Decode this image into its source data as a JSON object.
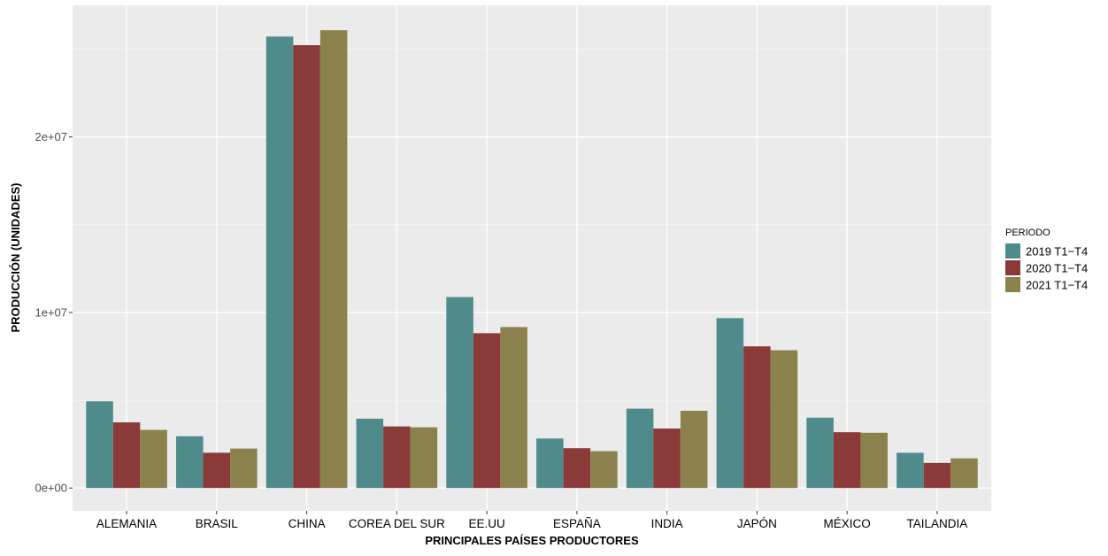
{
  "chart_data": {
    "type": "bar",
    "title": "",
    "xlabel": "PRINCIPALES PAÍSES PRODUCTORES",
    "ylabel": "PRODUCCIÓN (UNIDADES)",
    "categories": [
      "ALEMANIA",
      "BRASIL",
      "CHINA",
      "COREA DEL SUR",
      "EE.UU",
      "ESPAÑA",
      "INDIA",
      "JAPÓN",
      "MÉXICO",
      "TAILANDIA"
    ],
    "series": [
      {
        "name": "2019 T1−T4",
        "color": "#4f8b8b",
        "values": [
          4940000,
          2950000,
          25720000,
          3950000,
          10880000,
          2820000,
          4520000,
          9680000,
          4010000,
          2010000
        ]
      },
      {
        "name": "2020 T1−T4",
        "color": "#8b3a3a",
        "values": [
          3740000,
          2010000,
          25230000,
          3510000,
          8820000,
          2270000,
          3390000,
          8070000,
          3180000,
          1430000
        ]
      },
      {
        "name": "2021 T1−T4",
        "color": "#8b814c",
        "values": [
          3310000,
          2250000,
          26080000,
          3460000,
          9170000,
          2100000,
          4400000,
          7850000,
          3150000,
          1690000
        ]
      }
    ],
    "ylim": [
      -1300000,
      27500000
    ],
    "yticks": [
      0,
      10000000,
      20000000
    ],
    "ytick_labels": [
      "0e+00",
      "1e+07",
      "2e+07"
    ],
    "grid": true,
    "legend": {
      "title": "PERIODO",
      "position": "right"
    }
  }
}
